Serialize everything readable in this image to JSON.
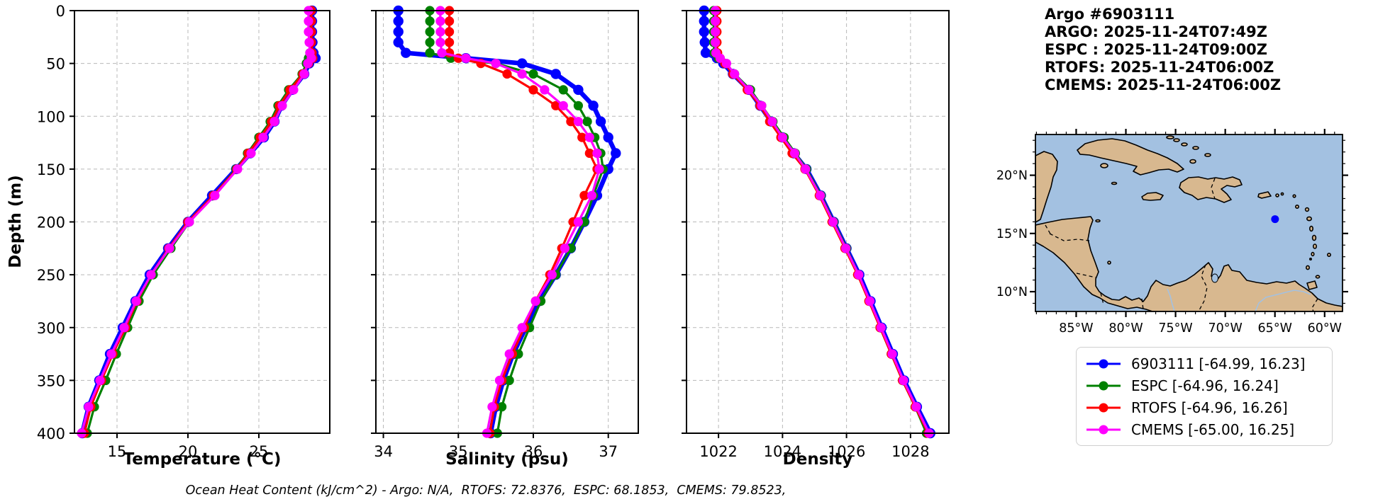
{
  "header": {
    "title": "Argo #6903111",
    "lines": [
      "ARGO: 2025-11-24T07:49Z",
      "ESPC : 2025-11-24T09:00Z",
      "RTOFS: 2025-11-24T06:00Z",
      "CMEMS: 2025-11-24T06:00Z"
    ]
  },
  "footer": {
    "text": "Ocean Heat Content (kJ/cm^2) - Argo: N/A,  RTOFS: 72.8376,  ESPC: 68.1853,  CMEMS: 79.8523,"
  },
  "colors": {
    "argo": "#0000ff",
    "espc": "#008000",
    "rtofs": "#ff0000",
    "cmems": "#ff00ff",
    "grid": "#b8b8b8",
    "map_water": "#a3c1e1",
    "map_land": "#d8b88f"
  },
  "chart_data": [
    {
      "type": "line",
      "xlabel": "Temperature (°C)",
      "ylabel": "Depth (m)",
      "xlim": [
        12.0,
        30.0
      ],
      "xticks": [
        15,
        20,
        25
      ],
      "ylim": [
        0,
        400
      ],
      "yticks": [
        0,
        50,
        100,
        150,
        200,
        250,
        300,
        350,
        400
      ],
      "grid": true,
      "depths": [
        0,
        10,
        20,
        30,
        40,
        45,
        50,
        60,
        75,
        90,
        105,
        120,
        135,
        150,
        175,
        200,
        225,
        250,
        275,
        300,
        325,
        350,
        375,
        400
      ],
      "series": [
        {
          "name": "6903111",
          "color": "#0000ff",
          "values": [
            28.75,
            28.75,
            28.75,
            28.78,
            28.85,
            29.0,
            28.55,
            28.2,
            27.35,
            26.6,
            26.1,
            25.35,
            24.4,
            23.4,
            21.7,
            20.0,
            18.6,
            17.3,
            16.3,
            15.4,
            14.5,
            13.75,
            13.0,
            12.55
          ]
        },
        {
          "name": "ESPC",
          "color": "#008000",
          "values": [
            28.6,
            28.6,
            28.6,
            28.6,
            28.6,
            28.5,
            28.35,
            28.05,
            27.1,
            26.35,
            25.8,
            25.0,
            24.2,
            23.4,
            21.8,
            20.1,
            18.8,
            17.55,
            16.55,
            15.75,
            14.95,
            14.2,
            13.4,
            12.9
          ]
        },
        {
          "name": "RTOFS",
          "color": "#ff0000",
          "values": [
            28.7,
            28.7,
            28.7,
            28.7,
            28.75,
            28.8,
            28.5,
            28.1,
            27.2,
            26.45,
            25.9,
            25.1,
            24.25,
            23.45,
            21.8,
            20.0,
            18.65,
            17.4,
            16.4,
            15.6,
            14.7,
            13.9,
            13.15,
            12.7
          ]
        },
        {
          "name": "CMEMS",
          "color": "#ff00ff",
          "values": [
            28.5,
            28.5,
            28.5,
            28.55,
            28.6,
            28.7,
            28.45,
            28.2,
            27.45,
            26.65,
            26.1,
            25.3,
            24.45,
            23.5,
            21.9,
            20.1,
            18.7,
            17.4,
            16.35,
            15.5,
            14.6,
            13.8,
            13.0,
            12.5
          ]
        }
      ]
    },
    {
      "type": "line",
      "xlabel": "Salinity (psu)",
      "xlim": [
        33.9,
        37.4
      ],
      "xticks": [
        34,
        35,
        36,
        37
      ],
      "ylim": [
        0,
        400
      ],
      "yticks": [
        0,
        50,
        100,
        150,
        200,
        250,
        300,
        350,
        400
      ],
      "grid": true,
      "depths": [
        0,
        10,
        20,
        30,
        40,
        45,
        50,
        60,
        75,
        90,
        105,
        120,
        135,
        150,
        175,
        200,
        225,
        250,
        275,
        300,
        325,
        350,
        375,
        400
      ],
      "series": [
        {
          "name": "6903111",
          "color": "#0000ff",
          "values": [
            34.2,
            34.2,
            34.2,
            34.2,
            34.3,
            35.1,
            35.85,
            36.3,
            36.6,
            36.8,
            36.9,
            37.0,
            37.1,
            37.0,
            36.85,
            36.68,
            36.5,
            36.3,
            36.08,
            35.9,
            35.73,
            35.6,
            35.5,
            35.43
          ]
        },
        {
          "name": "ESPC",
          "color": "#008000",
          "values": [
            34.62,
            34.62,
            34.62,
            34.62,
            34.62,
            34.9,
            35.5,
            36.0,
            36.4,
            36.6,
            36.72,
            36.82,
            36.9,
            36.93,
            36.8,
            36.68,
            36.5,
            36.3,
            36.1,
            35.95,
            35.8,
            35.68,
            35.58,
            35.52
          ]
        },
        {
          "name": "RTOFS",
          "color": "#ff0000",
          "values": [
            34.88,
            34.88,
            34.88,
            34.88,
            34.88,
            35.0,
            35.3,
            35.65,
            36.0,
            36.3,
            36.5,
            36.65,
            36.75,
            36.85,
            36.68,
            36.53,
            36.38,
            36.22,
            36.03,
            35.88,
            35.72,
            35.58,
            35.48,
            35.42
          ]
        },
        {
          "name": "CMEMS",
          "color": "#ff00ff",
          "values": [
            34.76,
            34.76,
            34.76,
            34.76,
            34.78,
            35.1,
            35.5,
            35.85,
            36.15,
            36.4,
            36.6,
            36.75,
            36.85,
            36.88,
            36.78,
            36.6,
            36.42,
            36.25,
            36.03,
            35.85,
            35.68,
            35.55,
            35.45,
            35.38
          ]
        }
      ]
    },
    {
      "type": "line",
      "xlabel": "Density",
      "xlim": [
        1021.0,
        1029.2
      ],
      "xticks": [
        1022,
        1024,
        1026,
        1028
      ],
      "ylim": [
        0,
        400
      ],
      "yticks": [
        0,
        50,
        100,
        150,
        200,
        250,
        300,
        350,
        400
      ],
      "grid": true,
      "depths": [
        0,
        10,
        20,
        30,
        40,
        45,
        50,
        60,
        75,
        90,
        105,
        120,
        135,
        150,
        175,
        200,
        225,
        250,
        275,
        300,
        325,
        350,
        375,
        400
      ],
      "series": [
        {
          "name": "6903111",
          "color": "#0000ff",
          "values": [
            1021.55,
            1021.55,
            1021.55,
            1021.57,
            1021.6,
            1021.95,
            1022.15,
            1022.45,
            1022.95,
            1023.3,
            1023.65,
            1024.0,
            1024.35,
            1024.75,
            1025.2,
            1025.6,
            1026.0,
            1026.4,
            1026.75,
            1027.1,
            1027.45,
            1027.8,
            1028.2,
            1028.62
          ]
        },
        {
          "name": "ESPC",
          "color": "#008000",
          "values": [
            1021.85,
            1021.85,
            1021.85,
            1021.85,
            1021.87,
            1022.0,
            1022.2,
            1022.5,
            1023.0,
            1023.35,
            1023.7,
            1024.05,
            1024.4,
            1024.75,
            1025.2,
            1025.6,
            1026.0,
            1026.38,
            1026.72,
            1027.05,
            1027.4,
            1027.75,
            1028.15,
            1028.5
          ]
        },
        {
          "name": "RTOFS",
          "color": "#ff0000",
          "values": [
            1021.95,
            1021.95,
            1021.95,
            1021.95,
            1021.97,
            1022.05,
            1022.2,
            1022.45,
            1022.9,
            1023.3,
            1023.6,
            1023.95,
            1024.3,
            1024.7,
            1025.15,
            1025.55,
            1025.95,
            1026.35,
            1026.7,
            1027.05,
            1027.4,
            1027.75,
            1028.15,
            1028.55
          ]
        },
        {
          "name": "CMEMS",
          "color": "#ff00ff",
          "values": [
            1021.9,
            1021.9,
            1021.9,
            1021.9,
            1021.92,
            1022.05,
            1022.25,
            1022.5,
            1022.95,
            1023.35,
            1023.68,
            1024.0,
            1024.38,
            1024.72,
            1025.18,
            1025.58,
            1025.98,
            1026.38,
            1026.73,
            1027.08,
            1027.43,
            1027.78,
            1028.18,
            1028.58
          ]
        }
      ]
    }
  ],
  "map": {
    "extent": {
      "lon": [
        -89.1,
        -58.2
      ],
      "lat": [
        8.3,
        23.5
      ]
    },
    "xticks": [
      {
        "lon": -85,
        "label": "85°W"
      },
      {
        "lon": -80,
        "label": "80°W"
      },
      {
        "lon": -75,
        "label": "75°W"
      },
      {
        "lon": -70,
        "label": "70°W"
      },
      {
        "lon": -65,
        "label": "65°W"
      },
      {
        "lon": -60,
        "label": "60°W"
      }
    ],
    "yticks": [
      {
        "lat": 20,
        "label": "20°N"
      },
      {
        "lat": 15,
        "label": "15°N"
      },
      {
        "lat": 10,
        "label": "10°N"
      }
    ],
    "marker": {
      "lon": -64.99,
      "lat": 16.23,
      "color": "#0000ff"
    }
  },
  "legend": {
    "items": [
      {
        "label": "6903111 [-64.99, 16.23]",
        "color": "#0000ff"
      },
      {
        "label": "ESPC [-64.96, 16.24]",
        "color": "#008000"
      },
      {
        "label": "RTOFS [-64.96, 16.26]",
        "color": "#ff0000"
      },
      {
        "label": "CMEMS [-65.00, 16.25]",
        "color": "#ff00ff"
      }
    ]
  }
}
